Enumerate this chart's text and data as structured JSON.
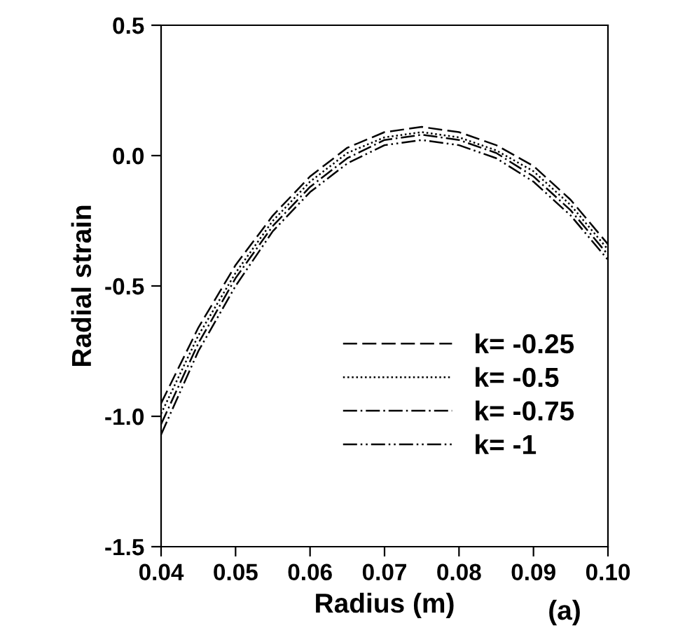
{
  "chart_data": {
    "type": "line",
    "xlabel": "Radius (m)",
    "ylabel": "Radial strain",
    "annotations": [
      "(a)"
    ],
    "x": [
      0.04,
      0.045,
      0.05,
      0.055,
      0.06,
      0.065,
      0.07,
      0.075,
      0.08,
      0.085,
      0.09,
      0.095,
      0.1
    ],
    "series": [
      {
        "name": "k= -0.25",
        "color": "#000000",
        "line_style": "dashed",
        "values": [
          -0.95,
          -0.66,
          -0.42,
          -0.23,
          -0.08,
          0.03,
          0.09,
          0.11,
          0.09,
          0.04,
          -0.04,
          -0.17,
          -0.34
        ]
      },
      {
        "name": "k= -0.5",
        "color": "#000000",
        "line_style": "dotted",
        "values": [
          -0.99,
          -0.69,
          -0.45,
          -0.25,
          -0.1,
          0.01,
          0.07,
          0.09,
          0.07,
          0.02,
          -0.06,
          -0.19,
          -0.36
        ]
      },
      {
        "name": "k= -0.75",
        "color": "#000000",
        "line_style": "dashdot",
        "values": [
          -1.03,
          -0.72,
          -0.47,
          -0.27,
          -0.12,
          -0.01,
          0.06,
          0.08,
          0.06,
          0.01,
          -0.08,
          -0.21,
          -0.38
        ]
      },
      {
        "name": "k= -1",
        "color": "#000000",
        "line_style": "dashdotdot",
        "values": [
          -1.07,
          -0.75,
          -0.5,
          -0.29,
          -0.14,
          -0.03,
          0.04,
          0.06,
          0.04,
          -0.01,
          -0.1,
          -0.23,
          -0.4
        ]
      }
    ],
    "xlim": [
      0.04,
      0.1
    ],
    "ylim": [
      -1.5,
      0.5
    ],
    "xticks": [
      {
        "value": 0.04,
        "label": "0.04"
      },
      {
        "value": 0.05,
        "label": "0.05"
      },
      {
        "value": 0.06,
        "label": "0.06"
      },
      {
        "value": 0.07,
        "label": "0.07"
      },
      {
        "value": 0.08,
        "label": "0.08"
      },
      {
        "value": 0.09,
        "label": "0.09"
      },
      {
        "value": 0.1,
        "label": "0.10"
      }
    ],
    "yticks": [
      {
        "value": -1.5,
        "label": "-1.5"
      },
      {
        "value": -1.0,
        "label": "-1.0"
      },
      {
        "value": -0.5,
        "label": "-0.5"
      },
      {
        "value": 0.0,
        "label": "0.0"
      },
      {
        "value": 0.5,
        "label": "0.5"
      }
    ],
    "legend": "bottom right",
    "grid": false,
    "marker": "none"
  }
}
